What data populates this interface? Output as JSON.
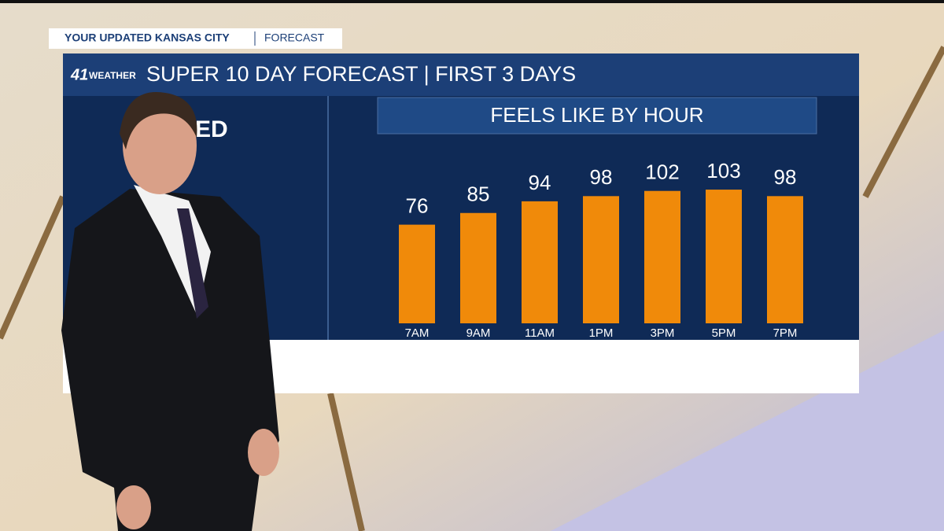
{
  "banner": {
    "title": "YOUR UPDATED KANSAS CITY",
    "section": "FORECAST"
  },
  "header": {
    "logo_number": "41",
    "logo_text": "WEATHER",
    "title": "SUPER 10 DAY FORECAST | FIRST 3 DAYS"
  },
  "panel": {
    "day_label": "ED"
  },
  "chart_data": {
    "type": "bar",
    "title": "FEELS LIKE BY HOUR",
    "categories": [
      "7AM",
      "9AM",
      "11AM",
      "1PM",
      "3PM",
      "5PM",
      "7PM"
    ],
    "values": [
      76,
      85,
      94,
      98,
      102,
      103,
      98
    ],
    "color": "#f08a0a"
  }
}
